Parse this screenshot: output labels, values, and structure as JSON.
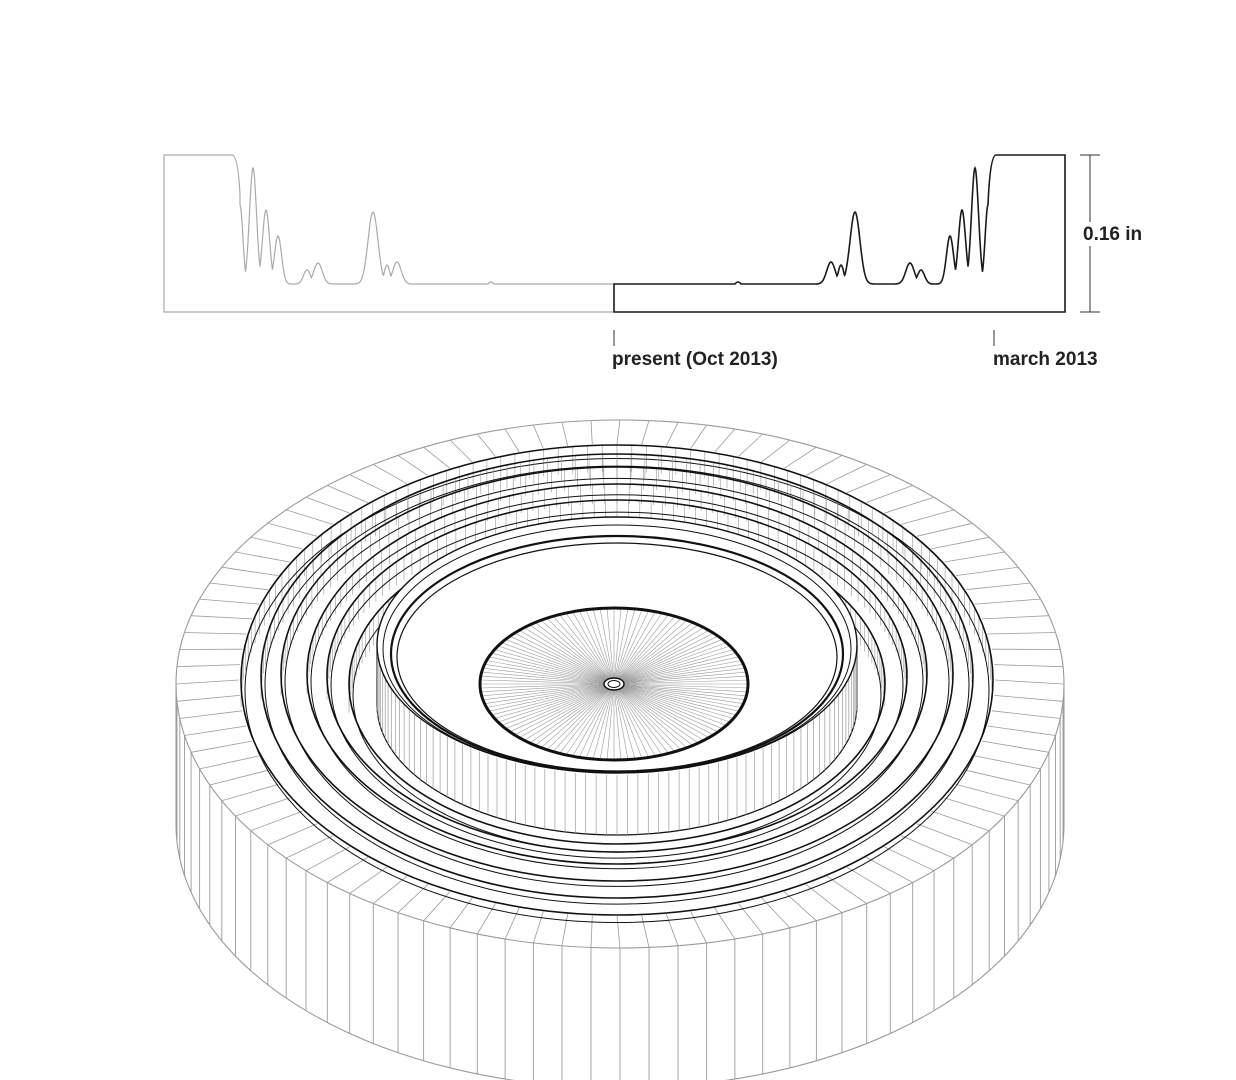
{
  "profile": {
    "height_label": "0.16 in",
    "present_label": "present (Oct 2013)",
    "start_label": "march 2013",
    "colors": {
      "profile_current": "#1a1a1a",
      "profile_mirror": "#aaaaaa",
      "dimension_line": "#333333"
    }
  },
  "model": {
    "colors": {
      "wire_light": "#9a9a9a",
      "wire_dark": "#111111",
      "background": "#ffffff"
    }
  }
}
